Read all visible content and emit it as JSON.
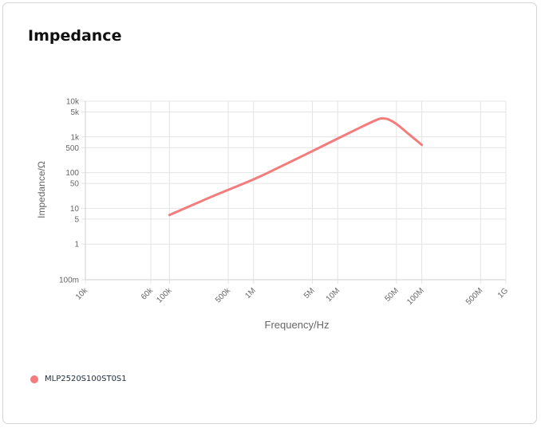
{
  "card": {
    "title": "Impedance"
  },
  "chart_data": {
    "type": "line",
    "title": "Impedance",
    "xlabel": "Frequency/Hz",
    "ylabel": "Impedance/Ω",
    "xscale": "log",
    "yscale": "log",
    "xlim": [
      10000,
      1000000000
    ],
    "ylim": [
      0.1,
      10000
    ],
    "grid": true,
    "legend_position": "bottom-left",
    "x_ticks": [
      {
        "value": 10000,
        "label": "10k"
      },
      {
        "value": 60000,
        "label": "60k"
      },
      {
        "value": 100000,
        "label": "100k"
      },
      {
        "value": 500000,
        "label": "500k"
      },
      {
        "value": 1000000,
        "label": "1M"
      },
      {
        "value": 5000000,
        "label": "5M"
      },
      {
        "value": 10000000,
        "label": "10M"
      },
      {
        "value": 50000000,
        "label": "50M"
      },
      {
        "value": 100000000,
        "label": "100M"
      },
      {
        "value": 500000000,
        "label": "500M"
      },
      {
        "value": 1000000000,
        "label": "1G"
      }
    ],
    "y_ticks": [
      {
        "value": 0.1,
        "label": "100m"
      },
      {
        "value": 1,
        "label": "1"
      },
      {
        "value": 5,
        "label": "5"
      },
      {
        "value": 10,
        "label": "10"
      },
      {
        "value": 50,
        "label": "50"
      },
      {
        "value": 100,
        "label": "100"
      },
      {
        "value": 500,
        "label": "500"
      },
      {
        "value": 1000,
        "label": "1k"
      },
      {
        "value": 5000,
        "label": "5k"
      },
      {
        "value": 10000,
        "label": "10k"
      }
    ],
    "series": [
      {
        "name": "MLP2520S100ST0S1",
        "color": "#f47c7c",
        "points": [
          [
            100000,
            6.5
          ],
          [
            300000,
            20
          ],
          [
            1000000,
            65
          ],
          [
            2000000,
            140
          ],
          [
            5000000,
            400
          ],
          [
            10000000,
            900
          ],
          [
            20000000,
            2000
          ],
          [
            30000000,
            3100
          ],
          [
            35000000,
            3300
          ],
          [
            40000000,
            3100
          ],
          [
            50000000,
            2300
          ],
          [
            70000000,
            1200
          ],
          [
            100000000,
            600
          ]
        ]
      }
    ]
  }
}
